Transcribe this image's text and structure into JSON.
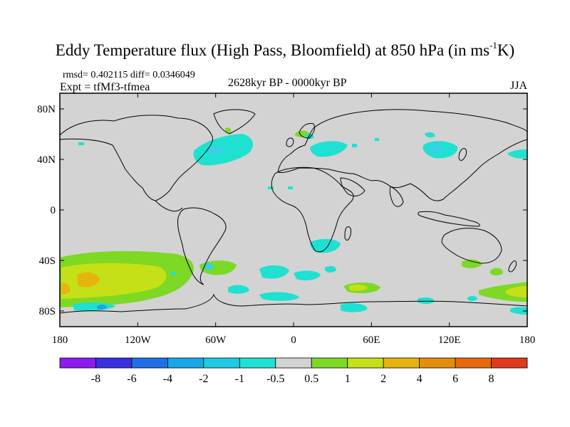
{
  "title": {
    "main": "Eddy Temperature flux (High Pass, Bloomfield) at 850 hPa (in ms",
    "superscript": "-1",
    "end": "K)"
  },
  "stats": {
    "text": "rmsd= 0.402115  diff= 0.0346049"
  },
  "experiment": {
    "text": "Expt = tfMf3-tfmea"
  },
  "period": {
    "text": "2628kyr BP - 0000kyr BP"
  },
  "season": {
    "text": "JJA"
  },
  "map": {
    "background": "#d3d3d3",
    "lat_ticks": [
      "80N",
      "40N",
      "0",
      "40S",
      "80S"
    ],
    "lon_ticks": [
      "180",
      "120W",
      "60W",
      "0",
      "60E",
      "120E",
      "180"
    ]
  },
  "legend": {
    "labels": [
      "-8",
      "-6",
      "-4",
      "-2",
      "-1",
      "-0.5",
      "0.5",
      "1",
      "2",
      "4",
      "6",
      "8"
    ],
    "colors": [
      "#8c1bef",
      "#3a2fe0",
      "#1f6fe6",
      "#18a7e6",
      "#1ccbe3",
      "#1ee1d1",
      "#d3d3d3",
      "#7dd924",
      "#c6e017",
      "#e6b40f",
      "#e68e0c",
      "#e66a0c",
      "#e0391b"
    ]
  },
  "colors": {
    "neg1": "#1ee1d1",
    "neg2": "#39cfe6",
    "neg3": "#1ca8e4",
    "pos1": "#7dd924",
    "pos2": "#c6e017",
    "pos3": "#e6b40f"
  }
}
